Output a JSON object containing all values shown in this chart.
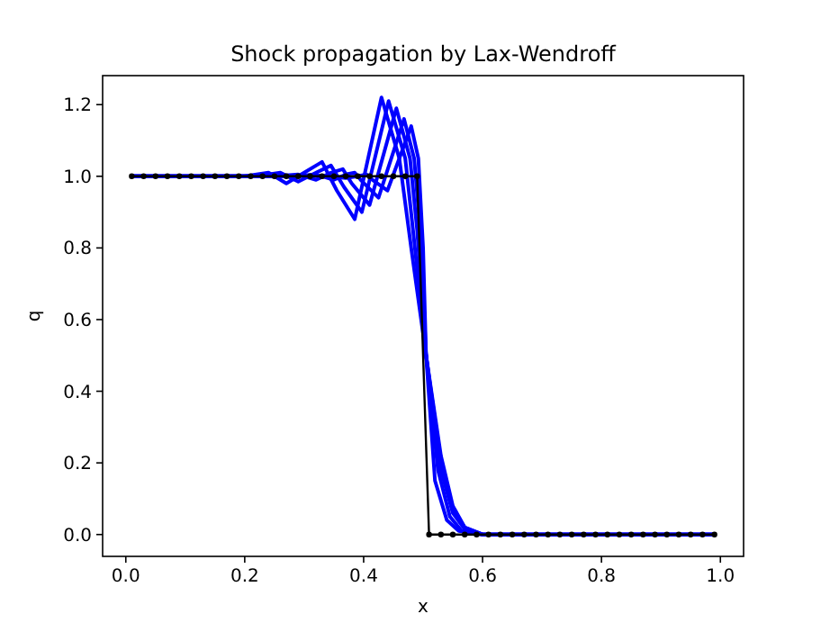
{
  "chart_data": {
    "type": "line",
    "title": "Shock propagation by Lax-Wendroff",
    "xlabel": "x",
    "ylabel": "q",
    "xlim": [
      -0.039,
      1.039
    ],
    "ylim": [
      -0.061,
      1.281
    ],
    "xticks": [
      {
        "value": 0,
        "label": "0.0"
      },
      {
        "value": 0.2,
        "label": "0.2"
      },
      {
        "value": 0.4,
        "label": "0.4"
      },
      {
        "value": 0.6,
        "label": "0.6"
      },
      {
        "value": 0.8,
        "label": "0.8"
      },
      {
        "value": 1,
        "label": "1.0"
      }
    ],
    "yticks": [
      {
        "value": 0,
        "label": "0.0"
      },
      {
        "value": 0.2,
        "label": "0.2"
      },
      {
        "value": 0.4,
        "label": "0.4"
      },
      {
        "value": 0.6,
        "label": "0.6"
      },
      {
        "value": 0.8,
        "label": "0.8"
      },
      {
        "value": 1,
        "label": "1.0"
      },
      {
        "value": 1.2,
        "label": "1.2"
      }
    ],
    "grid": false,
    "line_style": "solid",
    "series": [
      {
        "color": "#0000ff",
        "marker": "none",
        "x": [
          0.01,
          0.2,
          0.24,
          0.27,
          0.3,
          0.33,
          0.355,
          0.385,
          0.43,
          0.46,
          0.48,
          0.505,
          0.53,
          0.55,
          0.57,
          0.6,
          0.99
        ],
        "values": [
          1,
          1,
          1.01,
          0.98,
          1.01,
          1.04,
          0.96,
          0.88,
          1.22,
          1.05,
          0.8,
          0.5,
          0.22,
          0.08,
          0.02,
          0,
          0
        ]
      },
      {
        "color": "#0000ff",
        "marker": "none",
        "x": [
          0.01,
          0.22,
          0.26,
          0.29,
          0.32,
          0.345,
          0.367,
          0.397,
          0.442,
          0.47,
          0.485,
          0.505,
          0.53,
          0.55,
          0.57,
          0.6,
          0.99
        ],
        "values": [
          1,
          1,
          1.01,
          0.985,
          1.01,
          1.03,
          0.97,
          0.9,
          1.21,
          1.05,
          0.82,
          0.5,
          0.2,
          0.07,
          0.02,
          0,
          0
        ]
      },
      {
        "color": "#0000ff",
        "marker": "none",
        "x": [
          0.01,
          0.25,
          0.29,
          0.32,
          0.345,
          0.365,
          0.38,
          0.41,
          0.455,
          0.478,
          0.49,
          0.505,
          0.53,
          0.55,
          0.57,
          0.6,
          0.99
        ],
        "values": [
          1,
          1,
          1.005,
          0.99,
          1.01,
          1.02,
          0.98,
          0.92,
          1.19,
          1.05,
          0.85,
          0.5,
          0.18,
          0.06,
          0.015,
          0,
          0
        ]
      },
      {
        "color": "#0000ff",
        "marker": "none",
        "x": [
          0.01,
          0.28,
          0.32,
          0.35,
          0.37,
          0.385,
          0.395,
          0.425,
          0.468,
          0.485,
          0.495,
          0.505,
          0.525,
          0.545,
          0.565,
          0.6,
          0.99
        ],
        "values": [
          1,
          1,
          1.005,
          0.99,
          1.005,
          1.01,
          0.99,
          0.94,
          1.16,
          1.05,
          0.85,
          0.5,
          0.18,
          0.05,
          0.01,
          0,
          0
        ]
      },
      {
        "color": "#0000ff",
        "marker": "none",
        "x": [
          0.01,
          0.3,
          0.34,
          0.37,
          0.39,
          0.405,
          0.415,
          0.44,
          0.48,
          0.492,
          0.5,
          0.505,
          0.52,
          0.54,
          0.56,
          0.6,
          0.99
        ],
        "values": [
          1,
          1,
          1.0,
          0.995,
          1.0,
          1.005,
          0.99,
          0.96,
          1.14,
          1.05,
          0.8,
          0.5,
          0.15,
          0.04,
          0.01,
          0,
          0
        ]
      },
      {
        "color": "#000000",
        "marker": "circle",
        "x": [
          0.01,
          0.03,
          0.05,
          0.07,
          0.09,
          0.11,
          0.13,
          0.15,
          0.17,
          0.19,
          0.21,
          0.23,
          0.25,
          0.27,
          0.29,
          0.31,
          0.33,
          0.35,
          0.37,
          0.39,
          0.41,
          0.43,
          0.45,
          0.47,
          0.49,
          0.51,
          0.53,
          0.55,
          0.57,
          0.59,
          0.61,
          0.63,
          0.65,
          0.67,
          0.69,
          0.71,
          0.73,
          0.75,
          0.77,
          0.79,
          0.81,
          0.83,
          0.85,
          0.87,
          0.89,
          0.91,
          0.93,
          0.95,
          0.97,
          0.99
        ],
        "values": [
          1,
          1,
          1,
          1,
          1,
          1,
          1,
          1,
          1,
          1,
          1,
          1,
          1,
          1,
          1,
          1,
          1,
          1,
          1,
          1,
          1,
          1,
          1,
          1,
          1,
          0,
          0,
          0,
          0,
          0,
          0,
          0,
          0,
          0,
          0,
          0,
          0,
          0,
          0,
          0,
          0,
          0,
          0,
          0,
          0,
          0,
          0,
          0,
          0,
          0
        ]
      }
    ]
  }
}
